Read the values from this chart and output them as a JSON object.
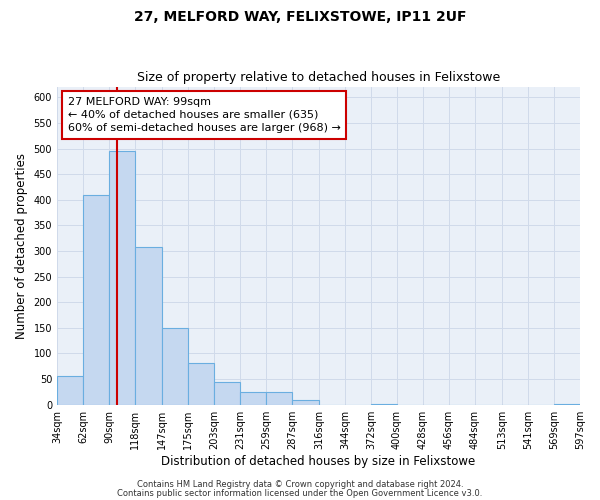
{
  "title1": "27, MELFORD WAY, FELIXSTOWE, IP11 2UF",
  "title2": "Size of property relative to detached houses in Felixstowe",
  "xlabel": "Distribution of detached houses by size in Felixstowe",
  "ylabel": "Number of detached properties",
  "bar_edges": [
    34,
    62,
    90,
    118,
    147,
    175,
    203,
    231,
    259,
    287,
    316,
    344,
    372,
    400,
    428,
    456,
    484,
    513,
    541,
    569,
    597
  ],
  "bar_heights": [
    57,
    410,
    495,
    307,
    150,
    82,
    44,
    25,
    25,
    10,
    0,
    0,
    2,
    0,
    0,
    0,
    0,
    0,
    0,
    2
  ],
  "bar_color": "#c5d8f0",
  "bar_edge_color": "#6aaee0",
  "property_line_x": 99,
  "property_line_color": "#cc0000",
  "ann_line1": "27 MELFORD WAY: 99sqm",
  "ann_line2": "← 40% of detached houses are smaller (635)",
  "ann_line3": "60% of semi-detached houses are larger (968) →",
  "ylim": [
    0,
    620
  ],
  "yticks": [
    0,
    50,
    100,
    150,
    200,
    250,
    300,
    350,
    400,
    450,
    500,
    550,
    600
  ],
  "grid_color": "#d0daea",
  "background_color": "#eaf0f8",
  "footer1": "Contains HM Land Registry data © Crown copyright and database right 2024.",
  "footer2": "Contains public sector information licensed under the Open Government Licence v3.0.",
  "title1_fontsize": 10,
  "title2_fontsize": 9,
  "tick_label_fontsize": 7,
  "axis_label_fontsize": 8.5,
  "annotation_fontsize": 8,
  "footer_fontsize": 6
}
